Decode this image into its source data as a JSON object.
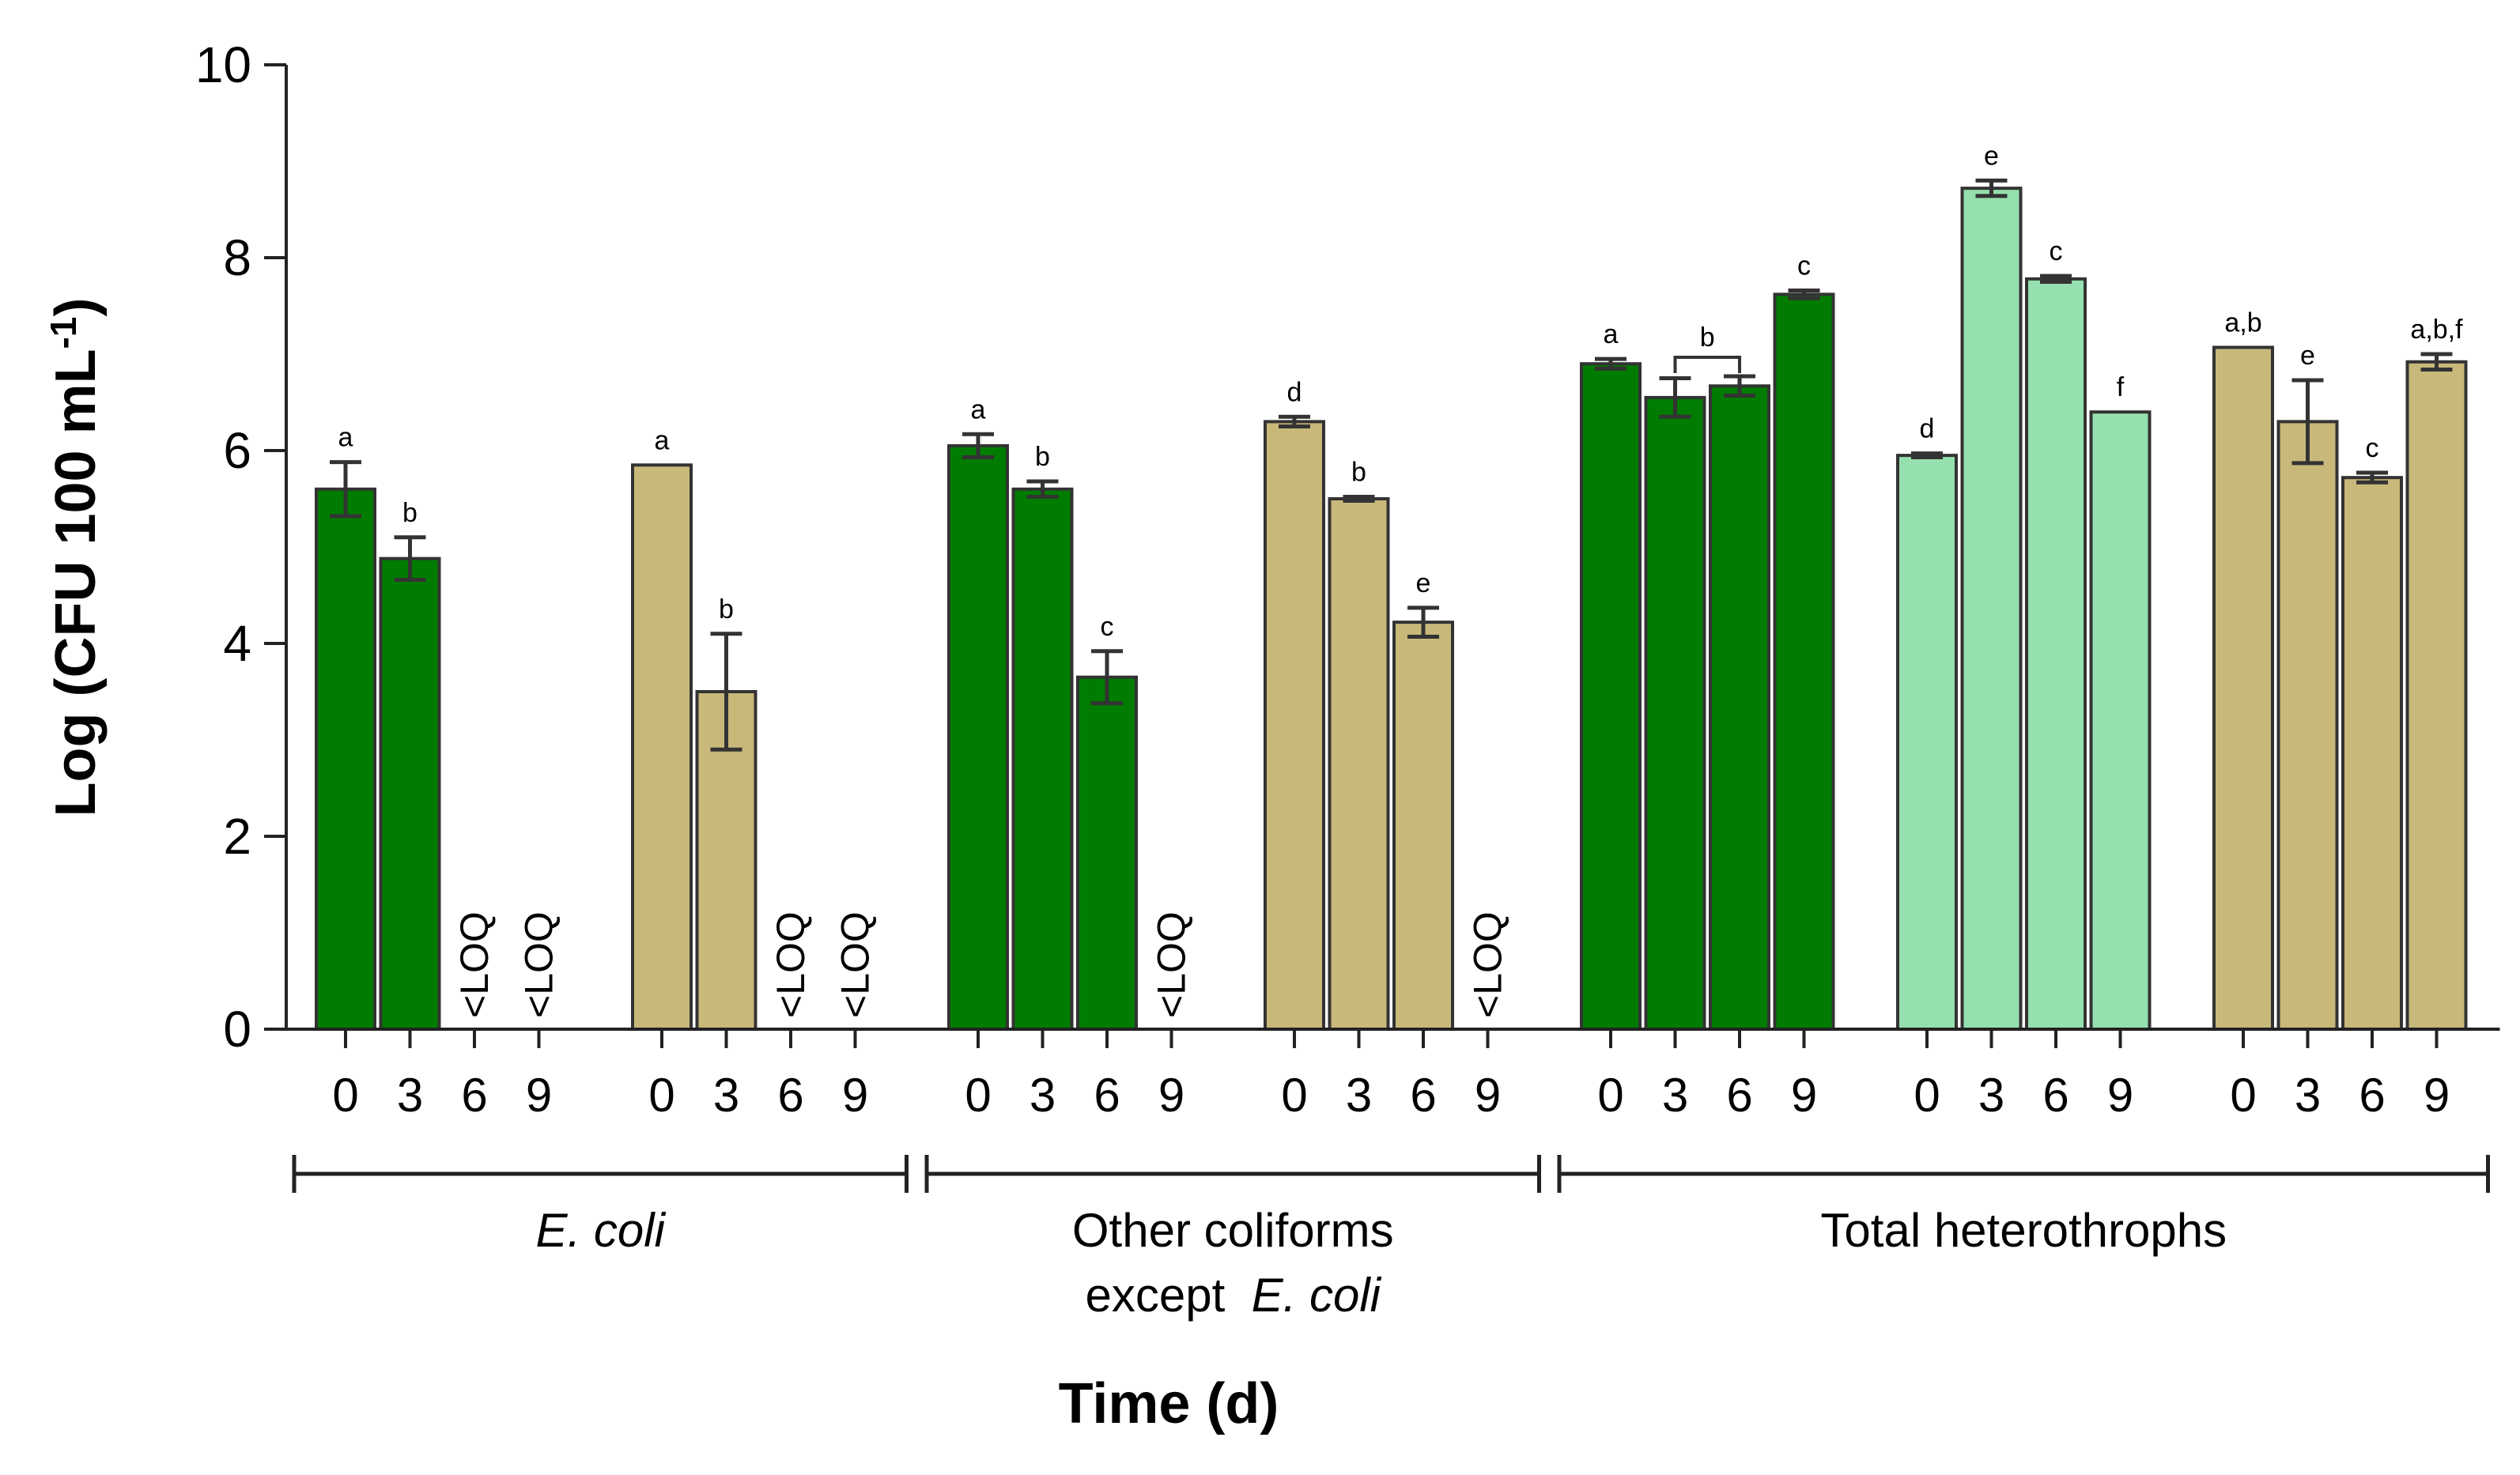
{
  "chart_data": {
    "type": "bar",
    "ylabel": "Log (CFU 100 mL",
    "ylabel_superscript": "-1",
    "ylabel_close": ")",
    "xlabel": "Time (d)",
    "ylim": [
      0,
      10
    ],
    "yticks": [
      "0",
      "2",
      "4",
      "6",
      "8",
      "10"
    ],
    "time_labels": [
      "0",
      "3",
      "6",
      "9"
    ],
    "loq_label": "<LOQ",
    "colors": {
      "dark_green": "#007c00",
      "tan": "#c8b87a",
      "light_green": "#95e0ae",
      "outline": "#333333"
    },
    "subgroups": [
      {
        "color": "dark_green",
        "bars": [
          {
            "time": "0",
            "value": 5.6,
            "error": 0.28,
            "sig": "a"
          },
          {
            "time": "3",
            "value": 4.88,
            "error": 0.22,
            "sig": "b"
          },
          {
            "time": "6",
            "value": null,
            "loq": true
          },
          {
            "time": "9",
            "value": null,
            "loq": true
          }
        ]
      },
      {
        "color": "tan",
        "bars": [
          {
            "time": "0",
            "value": 5.85,
            "error": 0,
            "sig": "a"
          },
          {
            "time": "3",
            "value": 3.5,
            "error": 0.6,
            "sig": "b"
          },
          {
            "time": "6",
            "value": null,
            "loq": true
          },
          {
            "time": "9",
            "value": null,
            "loq": true
          }
        ]
      },
      {
        "color": "dark_green",
        "bars": [
          {
            "time": "0",
            "value": 6.05,
            "error": 0.12,
            "sig": "a"
          },
          {
            "time": "3",
            "value": 5.6,
            "error": 0.08,
            "sig": "b"
          },
          {
            "time": "6",
            "value": 3.65,
            "error": 0.27,
            "sig": "c"
          },
          {
            "time": "9",
            "value": null,
            "loq": true
          }
        ]
      },
      {
        "color": "tan",
        "bars": [
          {
            "time": "0",
            "value": 6.3,
            "error": 0.05,
            "sig": "d"
          },
          {
            "time": "3",
            "value": 5.5,
            "error": 0.02,
            "sig": "b"
          },
          {
            "time": "6",
            "value": 4.22,
            "error": 0.15,
            "sig": "e"
          },
          {
            "time": "9",
            "value": null,
            "loq": true
          }
        ]
      },
      {
        "color": "dark_green",
        "bracket": {
          "from": 1,
          "to": 2,
          "label": "b"
        },
        "bars": [
          {
            "time": "0",
            "value": 6.9,
            "error": 0.05,
            "sig": "a"
          },
          {
            "time": "3",
            "value": 6.55,
            "error": 0.2
          },
          {
            "time": "6",
            "value": 6.67,
            "error": 0.1
          },
          {
            "time": "9",
            "value": 7.62,
            "error": 0.04,
            "sig": "c"
          }
        ]
      },
      {
        "color": "light_green",
        "bars": [
          {
            "time": "0",
            "value": 5.95,
            "error": 0.02,
            "sig": "d"
          },
          {
            "time": "3",
            "value": 8.72,
            "error": 0.08,
            "sig": "e"
          },
          {
            "time": "6",
            "value": 7.78,
            "error": 0.03,
            "sig": "c"
          },
          {
            "time": "9",
            "value": 6.4,
            "error": 0,
            "sig": "f"
          }
        ]
      },
      {
        "color": "tan",
        "bars": [
          {
            "time": "0",
            "value": 7.07,
            "error": 0,
            "sig": "a,b"
          },
          {
            "time": "3",
            "value": 6.3,
            "error": 0.43,
            "sig": "e"
          },
          {
            "time": "6",
            "value": 5.72,
            "error": 0.05,
            "sig": "c"
          },
          {
            "time": "9",
            "value": 6.92,
            "error": 0.08,
            "sig": "a,b,f"
          }
        ]
      }
    ],
    "groups": [
      {
        "lines": [
          "E. coli"
        ],
        "italic": [
          true
        ],
        "first_subgroup": 0,
        "last_subgroup": 1
      },
      {
        "lines": [
          "Other coliforms",
          "except  E. coli"
        ],
        "italic": [
          false,
          false
        ],
        "italic_suffix": "E. coli",
        "first_subgroup": 2,
        "last_subgroup": 3
      },
      {
        "lines": [
          "Total heterothrophs"
        ],
        "italic": [
          false
        ],
        "first_subgroup": 4,
        "last_subgroup": 6
      }
    ]
  }
}
